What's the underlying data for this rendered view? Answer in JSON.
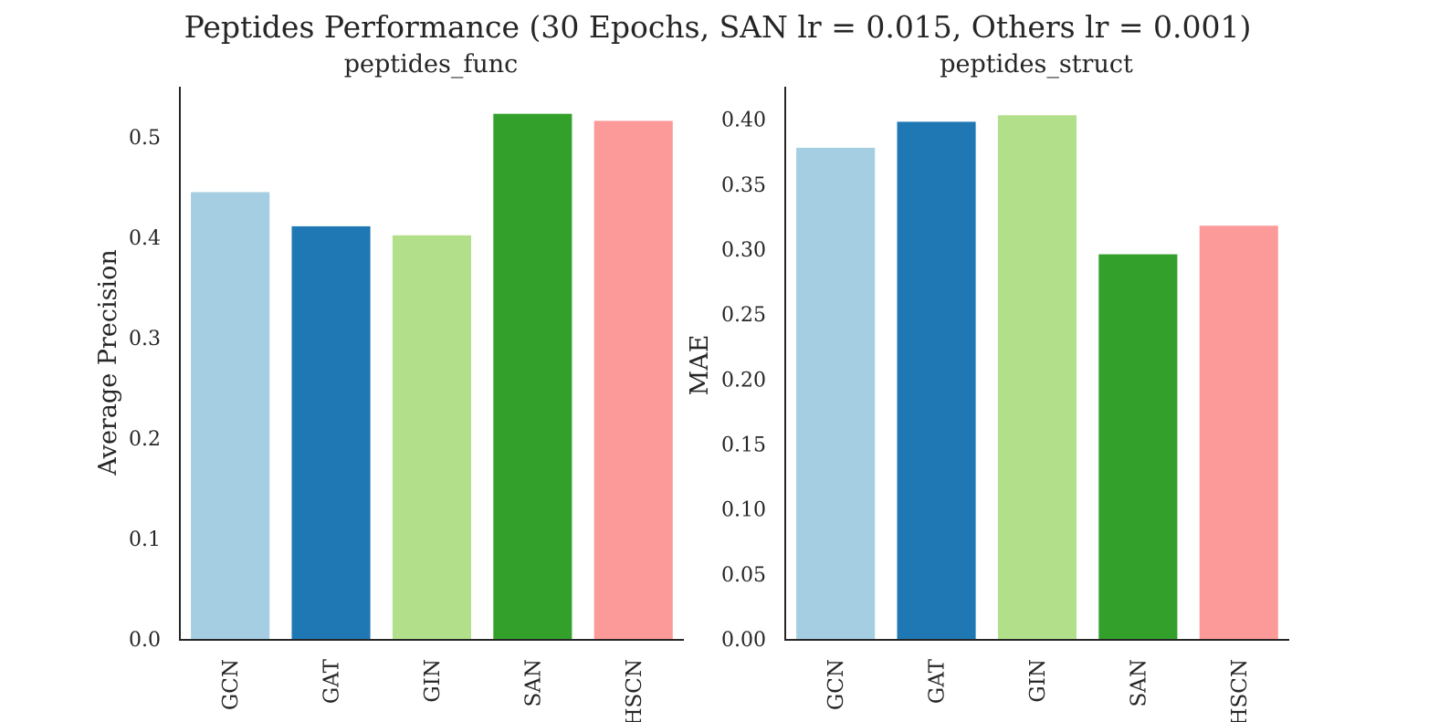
{
  "title": "Peptides Performance (30 Epochs, SAN lr = 0.015, Others lr = 0.001)",
  "chart_data": [
    {
      "type": "bar",
      "title": "peptides_func",
      "xlabel": "",
      "ylabel": "Average Precision",
      "categories": [
        "GCN",
        "GAT",
        "GIN",
        "SAN",
        "HSCN"
      ],
      "values": [
        0.445,
        0.411,
        0.402,
        0.523,
        0.516
      ],
      "colors": [
        "#a6cee3",
        "#1f78b4",
        "#b2df8a",
        "#33a02c",
        "#fb9a99"
      ],
      "ylim": [
        0,
        0.55
      ],
      "yticks": [
        0.0,
        0.1,
        0.2,
        0.3,
        0.4,
        0.5
      ],
      "ytick_labels": [
        "0.0",
        "0.1",
        "0.2",
        "0.3",
        "0.4",
        "0.5"
      ],
      "grid": false
    },
    {
      "type": "bar",
      "title": "peptides_struct",
      "xlabel": "",
      "ylabel": "MAE",
      "categories": [
        "GCN",
        "GAT",
        "GIN",
        "SAN",
        "HSCN"
      ],
      "values": [
        0.378,
        0.398,
        0.403,
        0.296,
        0.318
      ],
      "colors": [
        "#a6cee3",
        "#1f78b4",
        "#b2df8a",
        "#33a02c",
        "#fb9a99"
      ],
      "ylim": [
        0,
        0.425
      ],
      "yticks": [
        0.0,
        0.05,
        0.1,
        0.15,
        0.2,
        0.25,
        0.3,
        0.35,
        0.4
      ],
      "ytick_labels": [
        "0.00",
        "0.05",
        "0.10",
        "0.15",
        "0.20",
        "0.25",
        "0.30",
        "0.35",
        "0.40"
      ],
      "grid": false
    }
  ]
}
